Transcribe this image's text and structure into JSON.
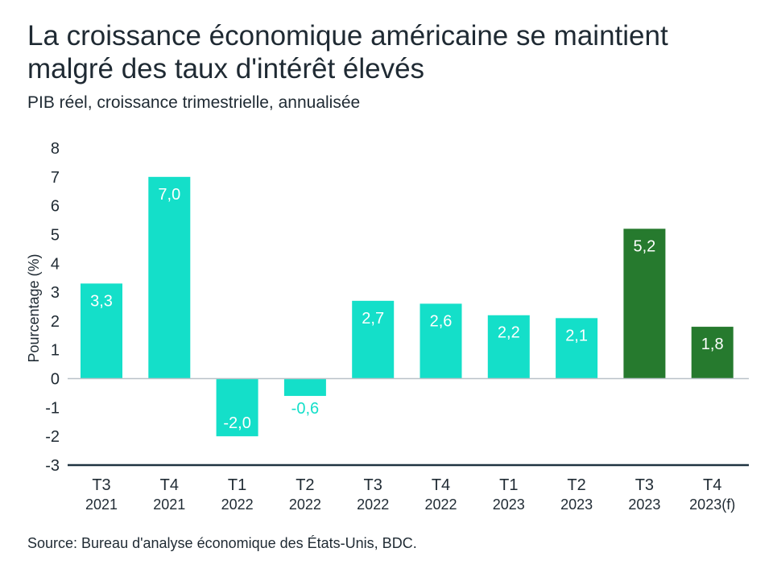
{
  "chart_data": {
    "type": "bar",
    "title": "La croissance économique américaine se maintient malgré des taux d'intérêt élevés",
    "subtitle": "PIB réel, croissance trimestrielle, annualisée",
    "ylabel": "Pourcentage (%)",
    "ylim": [
      -3,
      8
    ],
    "yticks": [
      8,
      7,
      6,
      5,
      4,
      3,
      2,
      1,
      0,
      -1,
      -2,
      -3
    ],
    "categories": [
      {
        "quarter": "T3",
        "year": "2021"
      },
      {
        "quarter": "T4",
        "year": "2021"
      },
      {
        "quarter": "T1",
        "year": "2022"
      },
      {
        "quarter": "T2",
        "year": "2022"
      },
      {
        "quarter": "T3",
        "year": "2022"
      },
      {
        "quarter": "T4",
        "year": "2022"
      },
      {
        "quarter": "T1",
        "year": "2023"
      },
      {
        "quarter": "T2",
        "year": "2023"
      },
      {
        "quarter": "T3",
        "year": "2023"
      },
      {
        "quarter": "T4",
        "year": "2023(f)"
      }
    ],
    "values": [
      3.3,
      7.0,
      -2.0,
      -0.6,
      2.7,
      2.6,
      2.2,
      2.1,
      5.2,
      1.8
    ],
    "labels": [
      "3,3",
      "7,0",
      "-2,0",
      "-0,6",
      "2,7",
      "2,6",
      "2,2",
      "2,1",
      "5,2",
      "1,8"
    ],
    "colors": [
      "#14dfc9",
      "#14dfc9",
      "#14dfc9",
      "#14dfc9",
      "#14dfc9",
      "#14dfc9",
      "#14dfc9",
      "#14dfc9",
      "#267a2e",
      "#267a2e"
    ],
    "grid": false,
    "legend": "none"
  },
  "source": "Source: Bureau d'analyse économique des États-Unis, BDC."
}
